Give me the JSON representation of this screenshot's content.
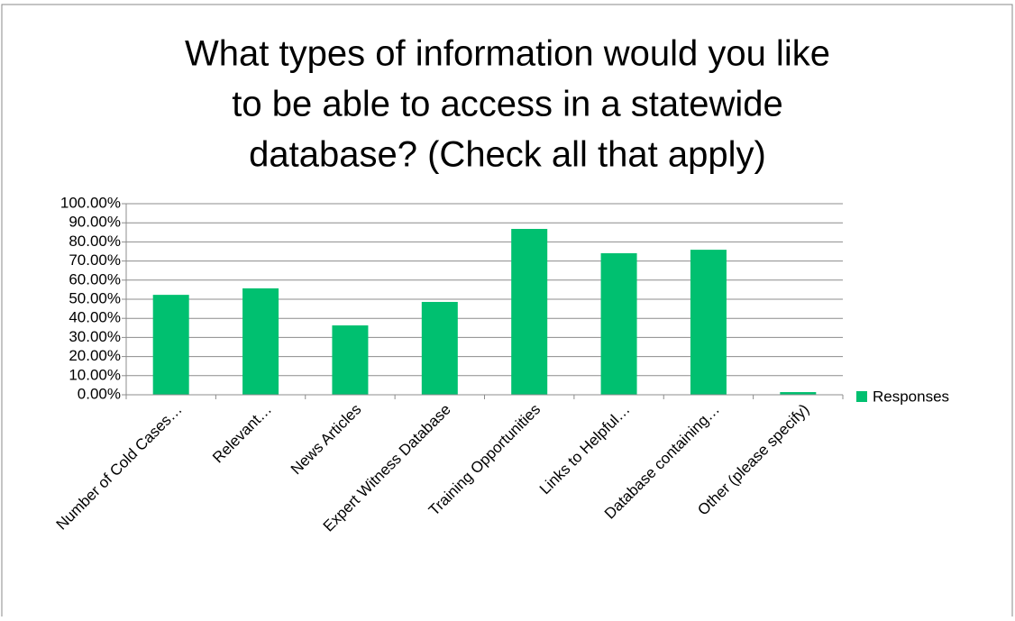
{
  "chart_data": {
    "type": "bar",
    "title": [
      "What types of information would you like",
      "to be able to access in a statewide",
      "database? (Check all that apply)"
    ],
    "categories": [
      "Number of Cold Cases…",
      "Relevant…",
      "News Articles",
      "Expert Witness Database",
      "Training Opportunities",
      "Links to Helpful…",
      "Database containing…",
      "Other (please specify)"
    ],
    "series": [
      {
        "name": "Responses",
        "color": "#00c070",
        "values": [
          52.3,
          55.7,
          36.3,
          48.6,
          86.8,
          74.1,
          75.9,
          1.4
        ]
      }
    ],
    "ylim": [
      0,
      100
    ],
    "yticks": [
      {
        "value": 0,
        "label": "0.00%"
      },
      {
        "value": 10,
        "label": "10.00%"
      },
      {
        "value": 20,
        "label": "20.00%"
      },
      {
        "value": 30,
        "label": "30.00%"
      },
      {
        "value": 40,
        "label": "40.00%"
      },
      {
        "value": 50,
        "label": "50.00%"
      },
      {
        "value": 60,
        "label": "60.00%"
      },
      {
        "value": 70,
        "label": "70.00%"
      },
      {
        "value": 80,
        "label": "80.00%"
      },
      {
        "value": 90,
        "label": "90.00%"
      },
      {
        "value": 100,
        "label": "100.00%"
      }
    ],
    "grid": true,
    "legend": "right"
  }
}
